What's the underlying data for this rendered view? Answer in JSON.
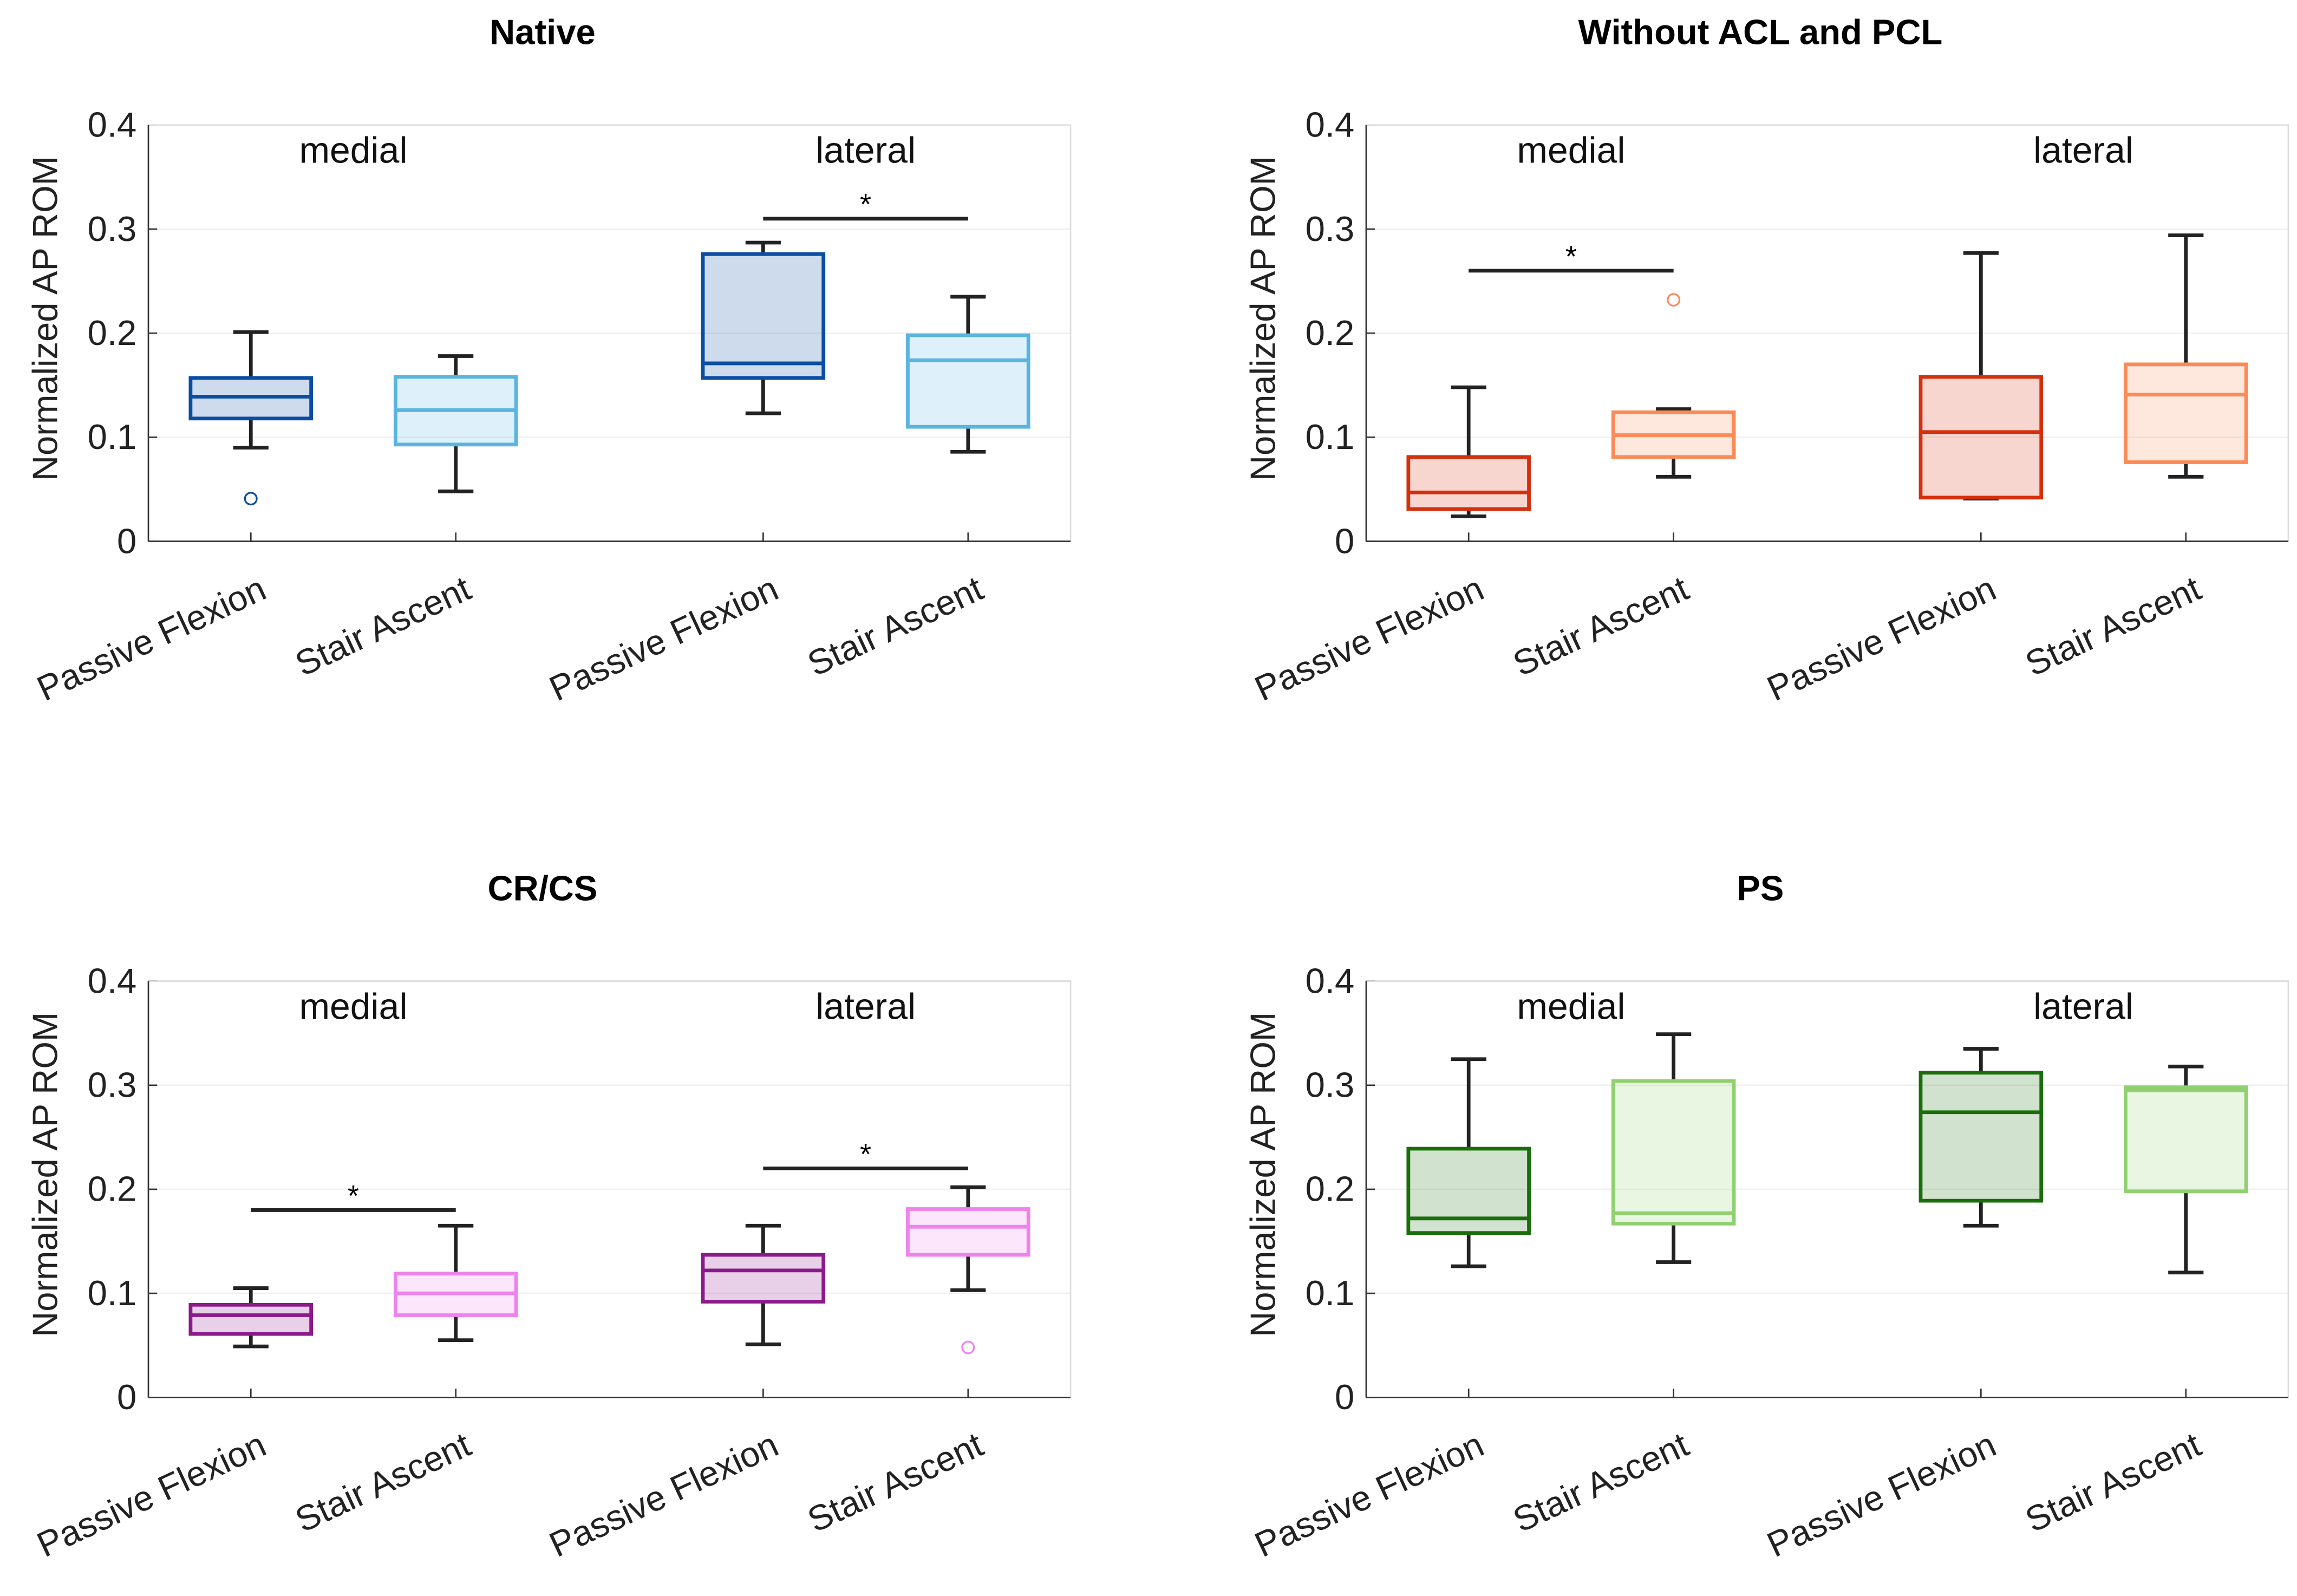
{
  "chart_data": [
    {
      "type": "box",
      "title": "Native",
      "ylabel": "Normalized AP ROM",
      "ylim": [
        0,
        0.4
      ],
      "yticks": [
        "0",
        "0.1",
        "0.2",
        "0.3",
        "0.4"
      ],
      "xlim": [
        0.5,
        5
      ],
      "grid": true,
      "groups": [
        {
          "label": "medial",
          "x": 1.5
        },
        {
          "label": "lateral",
          "x": 4.0
        }
      ],
      "categories": [
        "Passive Flexion",
        "Stair Ascent",
        "Passive Flexion",
        "Stair Ascent"
      ],
      "positions": [
        1,
        2,
        3.5,
        4.5
      ],
      "colors": [
        "#0a4da2",
        "#5ab4e0",
        "#0a4da2",
        "#5ab4e0"
      ],
      "boxes": [
        {
          "min": 0.09,
          "q1": 0.118,
          "median": 0.139,
          "q3": 0.157,
          "max": 0.201,
          "outliers": [
            0.041
          ]
        },
        {
          "min": 0.048,
          "q1": 0.093,
          "median": 0.126,
          "q3": 0.158,
          "max": 0.178,
          "outliers": []
        },
        {
          "min": 0.123,
          "q1": 0.157,
          "median": 0.171,
          "q3": 0.276,
          "max": 0.287,
          "outliers": []
        },
        {
          "min": 0.086,
          "q1": 0.11,
          "median": 0.174,
          "q3": 0.198,
          "max": 0.235,
          "outliers": []
        }
      ],
      "significance": [
        {
          "from": 3.5,
          "to": 4.5,
          "y": 0.31,
          "label": "*"
        }
      ]
    },
    {
      "type": "box",
      "title": "Without ACL and PCL",
      "ylabel": "Normalized AP ROM",
      "ylim": [
        0,
        0.4
      ],
      "yticks": [
        "0",
        "0.1",
        "0.2",
        "0.3",
        "0.4"
      ],
      "xlim": [
        0.5,
        5
      ],
      "grid": true,
      "groups": [
        {
          "label": "medial",
          "x": 1.5
        },
        {
          "label": "lateral",
          "x": 4.0
        }
      ],
      "categories": [
        "Passive Flexion",
        "Stair Ascent",
        "Passive Flexion",
        "Stair Ascent"
      ],
      "positions": [
        1,
        2,
        3.5,
        4.5
      ],
      "colors": [
        "#d4300e",
        "#fb8a56",
        "#d4300e",
        "#fb8a56"
      ],
      "boxes": [
        {
          "min": 0.024,
          "q1": 0.031,
          "median": 0.047,
          "q3": 0.081,
          "max": 0.148,
          "outliers": []
        },
        {
          "min": 0.062,
          "q1": 0.081,
          "median": 0.102,
          "q3": 0.124,
          "max": 0.127,
          "outliers": [
            0.232
          ]
        },
        {
          "min": 0.041,
          "q1": 0.042,
          "median": 0.105,
          "q3": 0.158,
          "max": 0.277,
          "outliers": []
        },
        {
          "min": 0.062,
          "q1": 0.076,
          "median": 0.141,
          "q3": 0.17,
          "max": 0.294,
          "outliers": []
        }
      ],
      "significance": [
        {
          "from": 1,
          "to": 2,
          "y": 0.26,
          "label": "*"
        }
      ]
    },
    {
      "type": "box",
      "title": "CR/CS",
      "ylabel": "Normalized AP ROM",
      "ylim": [
        0,
        0.4
      ],
      "yticks": [
        "0",
        "0.1",
        "0.2",
        "0.3",
        "0.4"
      ],
      "xlim": [
        0.5,
        5
      ],
      "grid": true,
      "groups": [
        {
          "label": "medial",
          "x": 1.5
        },
        {
          "label": "lateral",
          "x": 4.0
        }
      ],
      "categories": [
        "Passive Flexion",
        "Stair Ascent",
        "Passive Flexion",
        "Stair Ascent"
      ],
      "positions": [
        1,
        2,
        3.5,
        4.5
      ],
      "colors": [
        "#8b1a8b",
        "#ee82ee",
        "#8b1a8b",
        "#ee82ee"
      ],
      "boxes": [
        {
          "min": 0.049,
          "q1": 0.061,
          "median": 0.079,
          "q3": 0.089,
          "max": 0.105,
          "outliers": []
        },
        {
          "min": 0.055,
          "q1": 0.079,
          "median": 0.1,
          "q3": 0.119,
          "max": 0.165,
          "outliers": []
        },
        {
          "min": 0.051,
          "q1": 0.092,
          "median": 0.122,
          "q3": 0.137,
          "max": 0.165,
          "outliers": []
        },
        {
          "min": 0.103,
          "q1": 0.137,
          "median": 0.164,
          "q3": 0.181,
          "max": 0.202,
          "outliers": [
            0.048
          ]
        }
      ],
      "significance": [
        {
          "from": 1,
          "to": 2,
          "y": 0.18,
          "label": "*"
        },
        {
          "from": 3.5,
          "to": 4.5,
          "y": 0.22,
          "label": "*"
        }
      ]
    },
    {
      "type": "box",
      "title": "PS",
      "ylabel": "Normalized AP ROM",
      "ylim": [
        0,
        0.4
      ],
      "yticks": [
        "0",
        "0.1",
        "0.2",
        "0.3",
        "0.4"
      ],
      "xlim": [
        0.5,
        5
      ],
      "grid": true,
      "groups": [
        {
          "label": "medial",
          "x": 1.5
        },
        {
          "label": "lateral",
          "x": 4.0
        }
      ],
      "categories": [
        "Passive Flexion",
        "Stair Ascent",
        "Passive Flexion",
        "Stair Ascent"
      ],
      "positions": [
        1,
        2,
        3.5,
        4.5
      ],
      "colors": [
        "#1a6e0a",
        "#90d070",
        "#1a6e0a",
        "#90d070"
      ],
      "boxes": [
        {
          "min": 0.126,
          "q1": 0.158,
          "median": 0.172,
          "q3": 0.239,
          "max": 0.325,
          "outliers": []
        },
        {
          "min": 0.13,
          "q1": 0.167,
          "median": 0.177,
          "q3": 0.304,
          "max": 0.349,
          "outliers": []
        },
        {
          "min": 0.165,
          "q1": 0.189,
          "median": 0.274,
          "q3": 0.312,
          "max": 0.335,
          "outliers": []
        },
        {
          "min": 0.12,
          "q1": 0.198,
          "median": 0.295,
          "q3": 0.298,
          "max": 0.318,
          "outliers": []
        }
      ],
      "significance": []
    }
  ]
}
